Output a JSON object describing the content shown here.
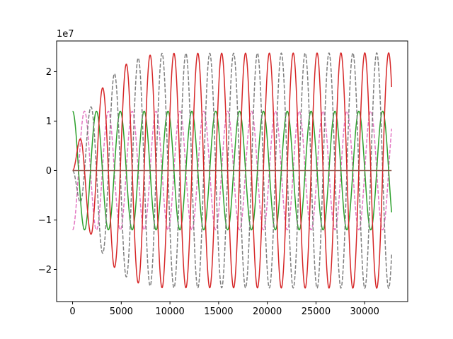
{
  "chart_data": {
    "type": "line",
    "title": "",
    "xlabel": "",
    "ylabel": "",
    "y_offset_label": "1e7",
    "y_scale": 10000000,
    "xlim": [
      -1640,
      34420
    ],
    "ylim": [
      -2.65,
      2.62
    ],
    "x_ticks": [
      0,
      5000,
      10000,
      15000,
      20000,
      25000,
      30000
    ],
    "x_tick_labels": [
      "0",
      "5000",
      "10000",
      "15000",
      "20000",
      "25000",
      "30000"
    ],
    "y_ticks": [
      -2,
      -1,
      0,
      1,
      2
    ],
    "y_tick_labels": [
      "−2",
      "−1",
      "0",
      "1",
      "2"
    ],
    "grid": false,
    "legend": "none",
    "x_start": 0,
    "x_end": 32767,
    "series": [
      {
        "color": "#e377c2",
        "dash": "dashed",
        "shape": "cosine with constant amplitude",
        "period": 2450,
        "phase_deg": 180,
        "envelope": [
          [
            0,
            12000000
          ],
          [
            32767,
            12000000
          ]
        ]
      },
      {
        "color": "#2ca02c",
        "dash": "solid",
        "shape": "cosine with constant amplitude",
        "period": 2450,
        "phase_deg": 0,
        "envelope": [
          [
            0,
            12000000
          ],
          [
            32767,
            12000000
          ]
        ]
      },
      {
        "color": "#7f7f7f",
        "dash": "dashed",
        "shape": "sine with growing amplitude",
        "period": 2450,
        "phase_deg": 180,
        "envelope": [
          [
            0,
            0
          ],
          [
            1000,
            9000000
          ],
          [
            2000,
            13500000
          ],
          [
            3500,
            18000000
          ],
          [
            5000,
            21000000
          ],
          [
            7000,
            23000000
          ],
          [
            9000,
            23700000
          ],
          [
            32767,
            23800000
          ]
        ]
      },
      {
        "color": "#d62728",
        "dash": "solid",
        "shape": "sine with growing amplitude",
        "period": 2450,
        "phase_deg": 0,
        "envelope": [
          [
            0,
            0
          ],
          [
            1000,
            9000000
          ],
          [
            2000,
            13500000
          ],
          [
            3500,
            18000000
          ],
          [
            5000,
            21000000
          ],
          [
            7000,
            23000000
          ],
          [
            9000,
            23700000
          ],
          [
            32767,
            23800000
          ]
        ]
      },
      {
        "color": "#8c564b",
        "dash": "solid",
        "shape": "constant",
        "period": 2450,
        "phase_deg": 0,
        "envelope": [
          [
            0,
            0
          ],
          [
            32767,
            0
          ]
        ]
      }
    ]
  }
}
